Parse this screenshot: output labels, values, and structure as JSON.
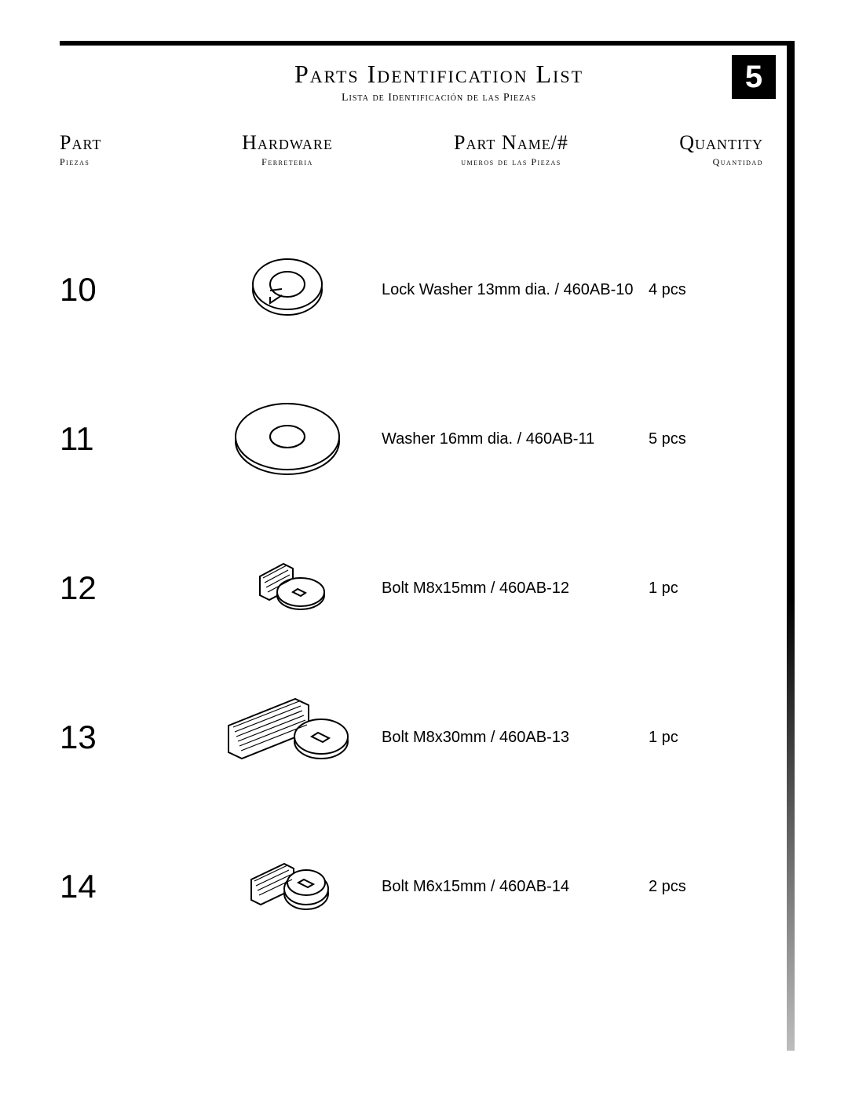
{
  "page_number": "5",
  "title": "Parts  Identification List",
  "subtitle": "Lista de Identificación de las Piezas",
  "columns": {
    "part": {
      "label": "Part",
      "sub": "Piezas"
    },
    "hardware": {
      "label": "Hardware",
      "sub": "Ferreteria"
    },
    "name": {
      "label": "Part Name/#",
      "sub": "umeros de las Piezas"
    },
    "qty": {
      "label": "Quantity",
      "sub": "Quantidad"
    }
  },
  "rows": [
    {
      "num": "10",
      "name": "Lock Washer 13mm dia. / 460AB-10",
      "qty": "4 pcs",
      "icon": "lock-washer"
    },
    {
      "num": "11",
      "name": "Washer 16mm dia. / 460AB-11",
      "qty": "5 pcs",
      "icon": "flat-washer"
    },
    {
      "num": "12",
      "name": "Bolt M8x15mm / 460AB-12",
      "qty": "1 pc",
      "icon": "bolt-short"
    },
    {
      "num": "13",
      "name": "Bolt M8x30mm / 460AB-13",
      "qty": "1 pc",
      "icon": "bolt-long"
    },
    {
      "num": "14",
      "name": "Bolt M6x15mm / 460AB-14",
      "qty": "2 pcs",
      "icon": "bolt-small"
    }
  ],
  "colors": {
    "stroke": "#000000",
    "fill_light": "#ffffff",
    "fill_shade": "#e8e8e8"
  }
}
